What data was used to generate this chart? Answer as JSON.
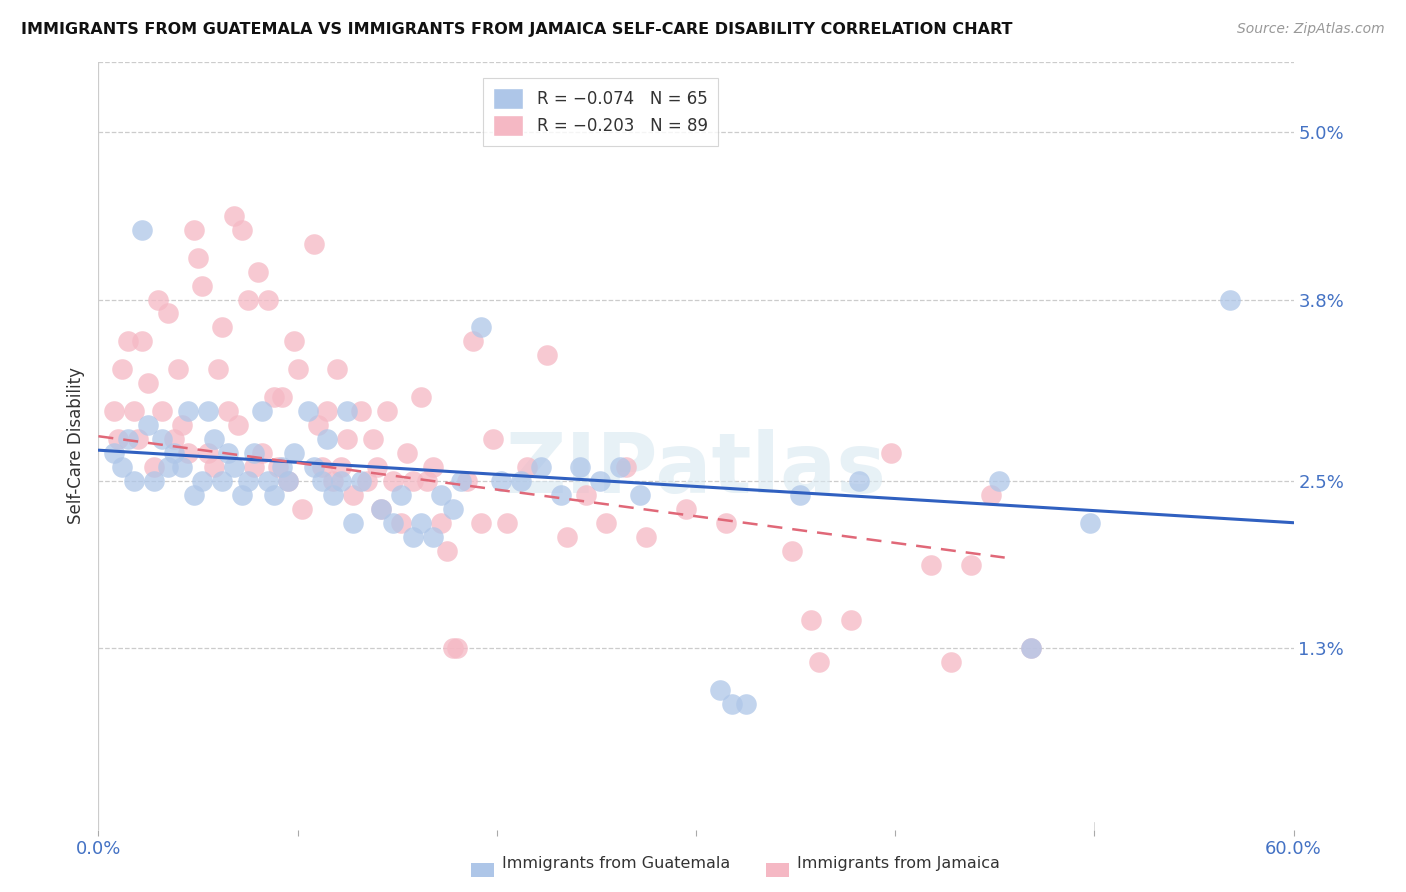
{
  "title": "IMMIGRANTS FROM GUATEMALA VS IMMIGRANTS FROM JAMAICA SELF-CARE DISABILITY CORRELATION CHART",
  "source": "Source: ZipAtlas.com",
  "ylabel": "Self-Care Disability",
  "ytick_labels": [
    "5.0%",
    "3.8%",
    "2.5%",
    "1.3%"
  ],
  "ytick_values": [
    0.05,
    0.038,
    0.025,
    0.013
  ],
  "xlim": [
    0.0,
    0.6
  ],
  "ylim": [
    0.0,
    0.055
  ],
  "watermark": "ZIPatlas",
  "guatemala_color": "#aec6e8",
  "jamaica_color": "#f5b8c4",
  "guatemala_line_color": "#3060c0",
  "jamaica_line_color": "#e06878",
  "guatemala_line_style": "solid",
  "jamaica_line_style": "dashed",
  "guatemala_points": [
    [
      0.008,
      0.027
    ],
    [
      0.012,
      0.026
    ],
    [
      0.015,
      0.028
    ],
    [
      0.018,
      0.025
    ],
    [
      0.022,
      0.043
    ],
    [
      0.025,
      0.029
    ],
    [
      0.028,
      0.025
    ],
    [
      0.032,
      0.028
    ],
    [
      0.035,
      0.026
    ],
    [
      0.038,
      0.027
    ],
    [
      0.042,
      0.026
    ],
    [
      0.045,
      0.03
    ],
    [
      0.048,
      0.024
    ],
    [
      0.052,
      0.025
    ],
    [
      0.055,
      0.03
    ],
    [
      0.058,
      0.028
    ],
    [
      0.062,
      0.025
    ],
    [
      0.065,
      0.027
    ],
    [
      0.068,
      0.026
    ],
    [
      0.072,
      0.024
    ],
    [
      0.075,
      0.025
    ],
    [
      0.078,
      0.027
    ],
    [
      0.082,
      0.03
    ],
    [
      0.085,
      0.025
    ],
    [
      0.088,
      0.024
    ],
    [
      0.092,
      0.026
    ],
    [
      0.095,
      0.025
    ],
    [
      0.098,
      0.027
    ],
    [
      0.105,
      0.03
    ],
    [
      0.108,
      0.026
    ],
    [
      0.112,
      0.025
    ],
    [
      0.115,
      0.028
    ],
    [
      0.118,
      0.024
    ],
    [
      0.122,
      0.025
    ],
    [
      0.125,
      0.03
    ],
    [
      0.128,
      0.022
    ],
    [
      0.132,
      0.025
    ],
    [
      0.142,
      0.023
    ],
    [
      0.148,
      0.022
    ],
    [
      0.152,
      0.024
    ],
    [
      0.158,
      0.021
    ],
    [
      0.162,
      0.022
    ],
    [
      0.168,
      0.021
    ],
    [
      0.172,
      0.024
    ],
    [
      0.178,
      0.023
    ],
    [
      0.182,
      0.025
    ],
    [
      0.192,
      0.036
    ],
    [
      0.202,
      0.025
    ],
    [
      0.212,
      0.025
    ],
    [
      0.222,
      0.026
    ],
    [
      0.232,
      0.024
    ],
    [
      0.242,
      0.026
    ],
    [
      0.252,
      0.025
    ],
    [
      0.262,
      0.026
    ],
    [
      0.272,
      0.024
    ],
    [
      0.312,
      0.01
    ],
    [
      0.318,
      0.009
    ],
    [
      0.325,
      0.009
    ],
    [
      0.352,
      0.024
    ],
    [
      0.382,
      0.025
    ],
    [
      0.452,
      0.025
    ],
    [
      0.468,
      0.013
    ],
    [
      0.498,
      0.022
    ],
    [
      0.568,
      0.038
    ]
  ],
  "jamaica_points": [
    [
      0.008,
      0.03
    ],
    [
      0.01,
      0.028
    ],
    [
      0.012,
      0.033
    ],
    [
      0.015,
      0.035
    ],
    [
      0.018,
      0.03
    ],
    [
      0.02,
      0.028
    ],
    [
      0.022,
      0.035
    ],
    [
      0.025,
      0.032
    ],
    [
      0.028,
      0.026
    ],
    [
      0.03,
      0.038
    ],
    [
      0.032,
      0.03
    ],
    [
      0.035,
      0.037
    ],
    [
      0.038,
      0.028
    ],
    [
      0.04,
      0.033
    ],
    [
      0.042,
      0.029
    ],
    [
      0.045,
      0.027
    ],
    [
      0.048,
      0.043
    ],
    [
      0.05,
      0.041
    ],
    [
      0.052,
      0.039
    ],
    [
      0.055,
      0.027
    ],
    [
      0.058,
      0.026
    ],
    [
      0.06,
      0.033
    ],
    [
      0.062,
      0.036
    ],
    [
      0.065,
      0.03
    ],
    [
      0.068,
      0.044
    ],
    [
      0.07,
      0.029
    ],
    [
      0.072,
      0.043
    ],
    [
      0.075,
      0.038
    ],
    [
      0.078,
      0.026
    ],
    [
      0.08,
      0.04
    ],
    [
      0.082,
      0.027
    ],
    [
      0.085,
      0.038
    ],
    [
      0.088,
      0.031
    ],
    [
      0.09,
      0.026
    ],
    [
      0.092,
      0.031
    ],
    [
      0.095,
      0.025
    ],
    [
      0.098,
      0.035
    ],
    [
      0.1,
      0.033
    ],
    [
      0.102,
      0.023
    ],
    [
      0.108,
      0.042
    ],
    [
      0.11,
      0.029
    ],
    [
      0.112,
      0.026
    ],
    [
      0.115,
      0.03
    ],
    [
      0.118,
      0.025
    ],
    [
      0.12,
      0.033
    ],
    [
      0.122,
      0.026
    ],
    [
      0.125,
      0.028
    ],
    [
      0.128,
      0.024
    ],
    [
      0.132,
      0.03
    ],
    [
      0.135,
      0.025
    ],
    [
      0.138,
      0.028
    ],
    [
      0.14,
      0.026
    ],
    [
      0.142,
      0.023
    ],
    [
      0.145,
      0.03
    ],
    [
      0.148,
      0.025
    ],
    [
      0.152,
      0.022
    ],
    [
      0.155,
      0.027
    ],
    [
      0.158,
      0.025
    ],
    [
      0.162,
      0.031
    ],
    [
      0.165,
      0.025
    ],
    [
      0.168,
      0.026
    ],
    [
      0.172,
      0.022
    ],
    [
      0.175,
      0.02
    ],
    [
      0.178,
      0.013
    ],
    [
      0.18,
      0.013
    ],
    [
      0.185,
      0.025
    ],
    [
      0.188,
      0.035
    ],
    [
      0.192,
      0.022
    ],
    [
      0.198,
      0.028
    ],
    [
      0.205,
      0.022
    ],
    [
      0.215,
      0.026
    ],
    [
      0.225,
      0.034
    ],
    [
      0.235,
      0.021
    ],
    [
      0.245,
      0.024
    ],
    [
      0.255,
      0.022
    ],
    [
      0.265,
      0.026
    ],
    [
      0.275,
      0.021
    ],
    [
      0.295,
      0.023
    ],
    [
      0.315,
      0.022
    ],
    [
      0.348,
      0.02
    ],
    [
      0.362,
      0.012
    ],
    [
      0.398,
      0.027
    ],
    [
      0.418,
      0.019
    ],
    [
      0.428,
      0.012
    ],
    [
      0.438,
      0.019
    ],
    [
      0.448,
      0.024
    ],
    [
      0.468,
      0.013
    ],
    [
      0.358,
      0.015
    ],
    [
      0.378,
      0.015
    ]
  ],
  "guatemala_line_x": [
    0.0,
    0.6
  ],
  "guatemala_line_y": [
    0.0272,
    0.022
  ],
  "jamaica_line_x": [
    0.0,
    0.455
  ],
  "jamaica_line_y": [
    0.0282,
    0.0195
  ]
}
